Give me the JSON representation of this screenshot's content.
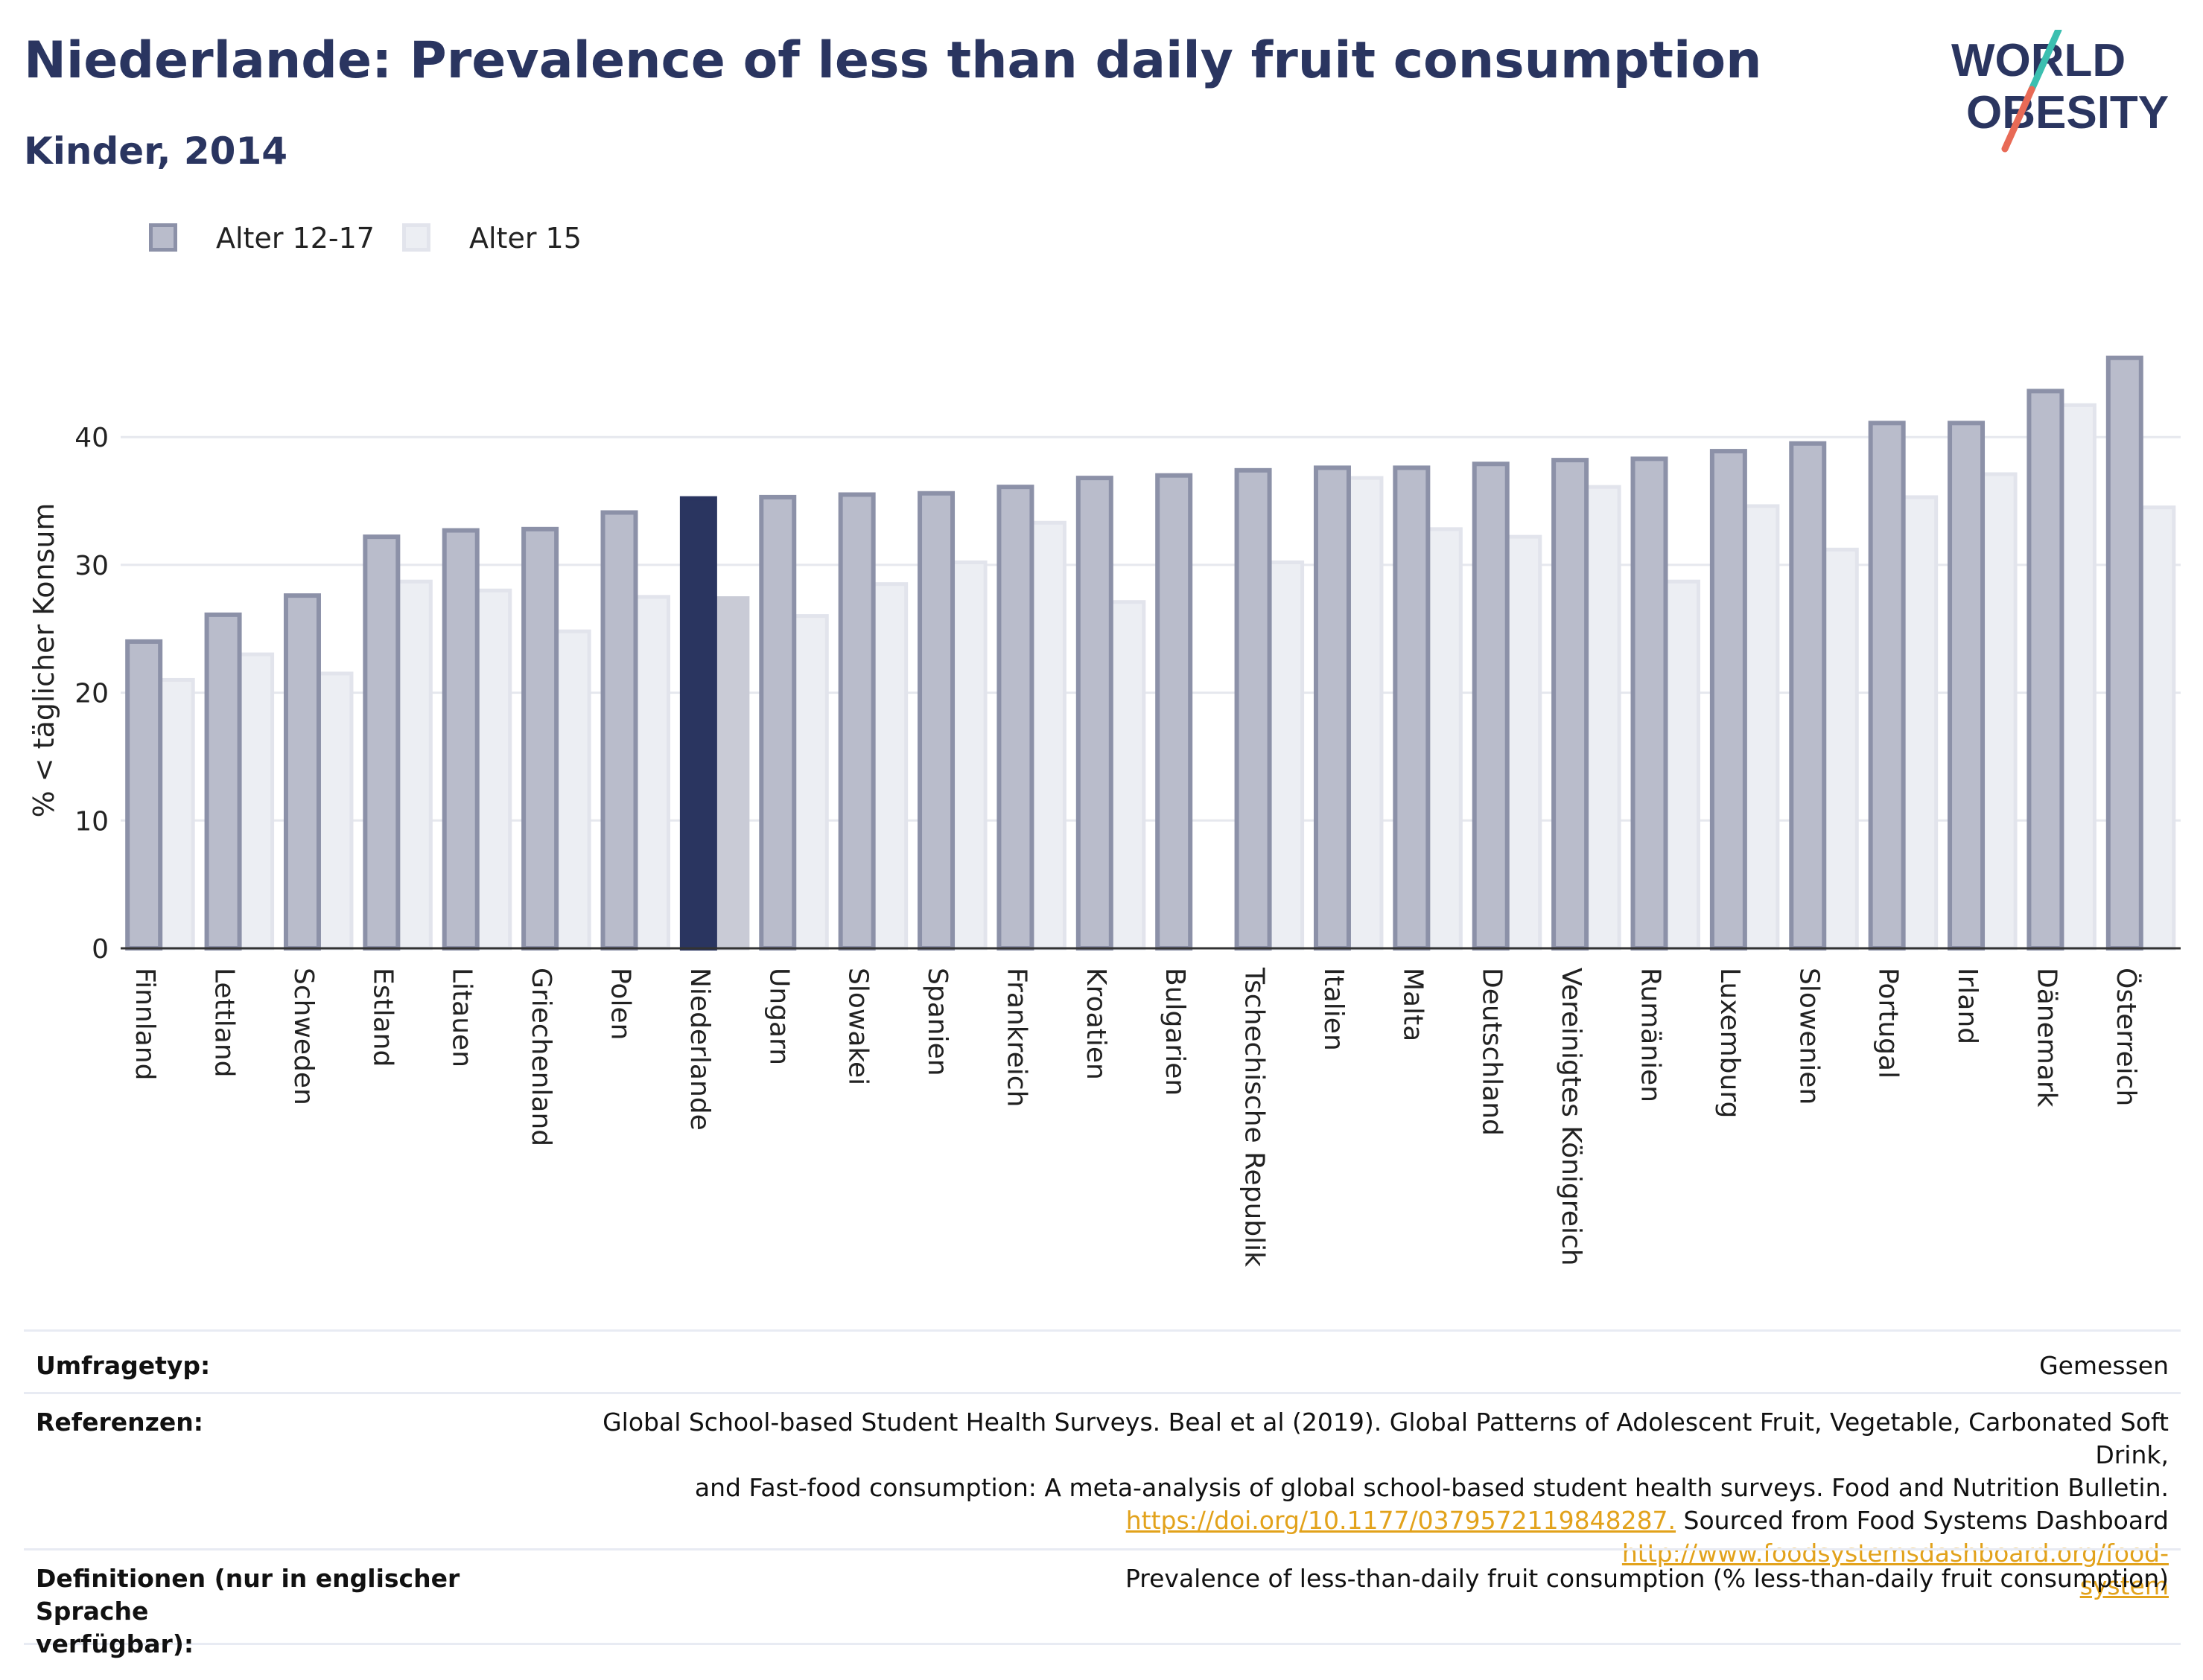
{
  "header": {
    "title": "Niederlande: Prevalence of less than daily fruit consumption",
    "subtitle": "Kinder, 2014"
  },
  "logo": {
    "line1": "WORLD",
    "line2": "OBESITY",
    "accent_teal": "#3bbfb0",
    "accent_coral": "#e86a56",
    "text_color": "#2a3560"
  },
  "colors": {
    "series1_fill": "#b9bccb",
    "series1_stroke": "#8c91a8",
    "series2_fill": "#eceef3",
    "series2_stroke": "#e2e4ec",
    "highlight1": "#2a3560",
    "highlight2": "#c9cbd6",
    "grid": "#e6e8ee",
    "axis": "#333333"
  },
  "chart_data": {
    "type": "bar",
    "ylabel": "% < täglicher Konsum",
    "ylim": [
      0,
      50
    ],
    "yticks": [
      0,
      10,
      20,
      30,
      40
    ],
    "highlight": "Niederlande",
    "legend_position": "top-left",
    "grid": true,
    "categories": [
      "Finnland",
      "Lettland",
      "Schweden",
      "Estland",
      "Litauen",
      "Griechenland",
      "Polen",
      "Niederlande",
      "Ungarn",
      "Slowakei",
      "Spanien",
      "Frankreich",
      "Kroatien",
      "Bulgarien",
      "Tschechische Republik",
      "Italien",
      "Malta",
      "Deutschland",
      "Vereinigtes Königreich",
      "Rumänien",
      "Luxemburg",
      "Slowenien",
      "Portugal",
      "Irland",
      "Dänemark",
      "Österreich"
    ],
    "series": [
      {
        "name": "Alter 12-17",
        "values": [
          24.0,
          26.1,
          27.6,
          32.2,
          32.7,
          32.8,
          34.1,
          35.2,
          35.3,
          35.5,
          35.6,
          36.1,
          36.8,
          37.0,
          37.4,
          37.6,
          37.6,
          37.9,
          38.2,
          38.3,
          38.9,
          39.5,
          41.1,
          41.1,
          43.6,
          46.2
        ]
      },
      {
        "name": "Alter 15",
        "values": [
          21.0,
          23.0,
          21.5,
          28.7,
          28.0,
          24.8,
          27.5,
          27.4,
          26.0,
          28.5,
          30.2,
          33.3,
          27.1,
          null,
          30.2,
          36.8,
          32.8,
          32.2,
          36.1,
          28.7,
          34.6,
          31.2,
          35.3,
          37.1,
          42.5,
          34.5
        ]
      }
    ]
  },
  "meta": {
    "survey_type_label": "Umfragetyp:",
    "survey_type_value": "Gemessen",
    "references_label": "Referenzen:",
    "references_text1": "Global School-based Student Health Surveys. Beal et al (2019). Global Patterns of Adolescent Fruit, Vegetable, Carbonated Soft Drink,",
    "references_text2": "and Fast-food consumption: A meta-analysis of global school-based student health surveys. Food and Nutrition Bulletin.",
    "references_link1": "https://doi.org/10.1177/0379572119848287.",
    "references_text3": " Sourced from Food Systems Dashboard ",
    "references_link2a": "http://www.foodsystemsdashboard.org/food-",
    "references_link2b": "system",
    "definitions_label1": "Definitionen (nur in englischer Sprache",
    "definitions_label2": "verfügbar):",
    "definitions_value": "Prevalence of less-than-daily fruit consumption (% less-than-daily fruit consumption)"
  }
}
